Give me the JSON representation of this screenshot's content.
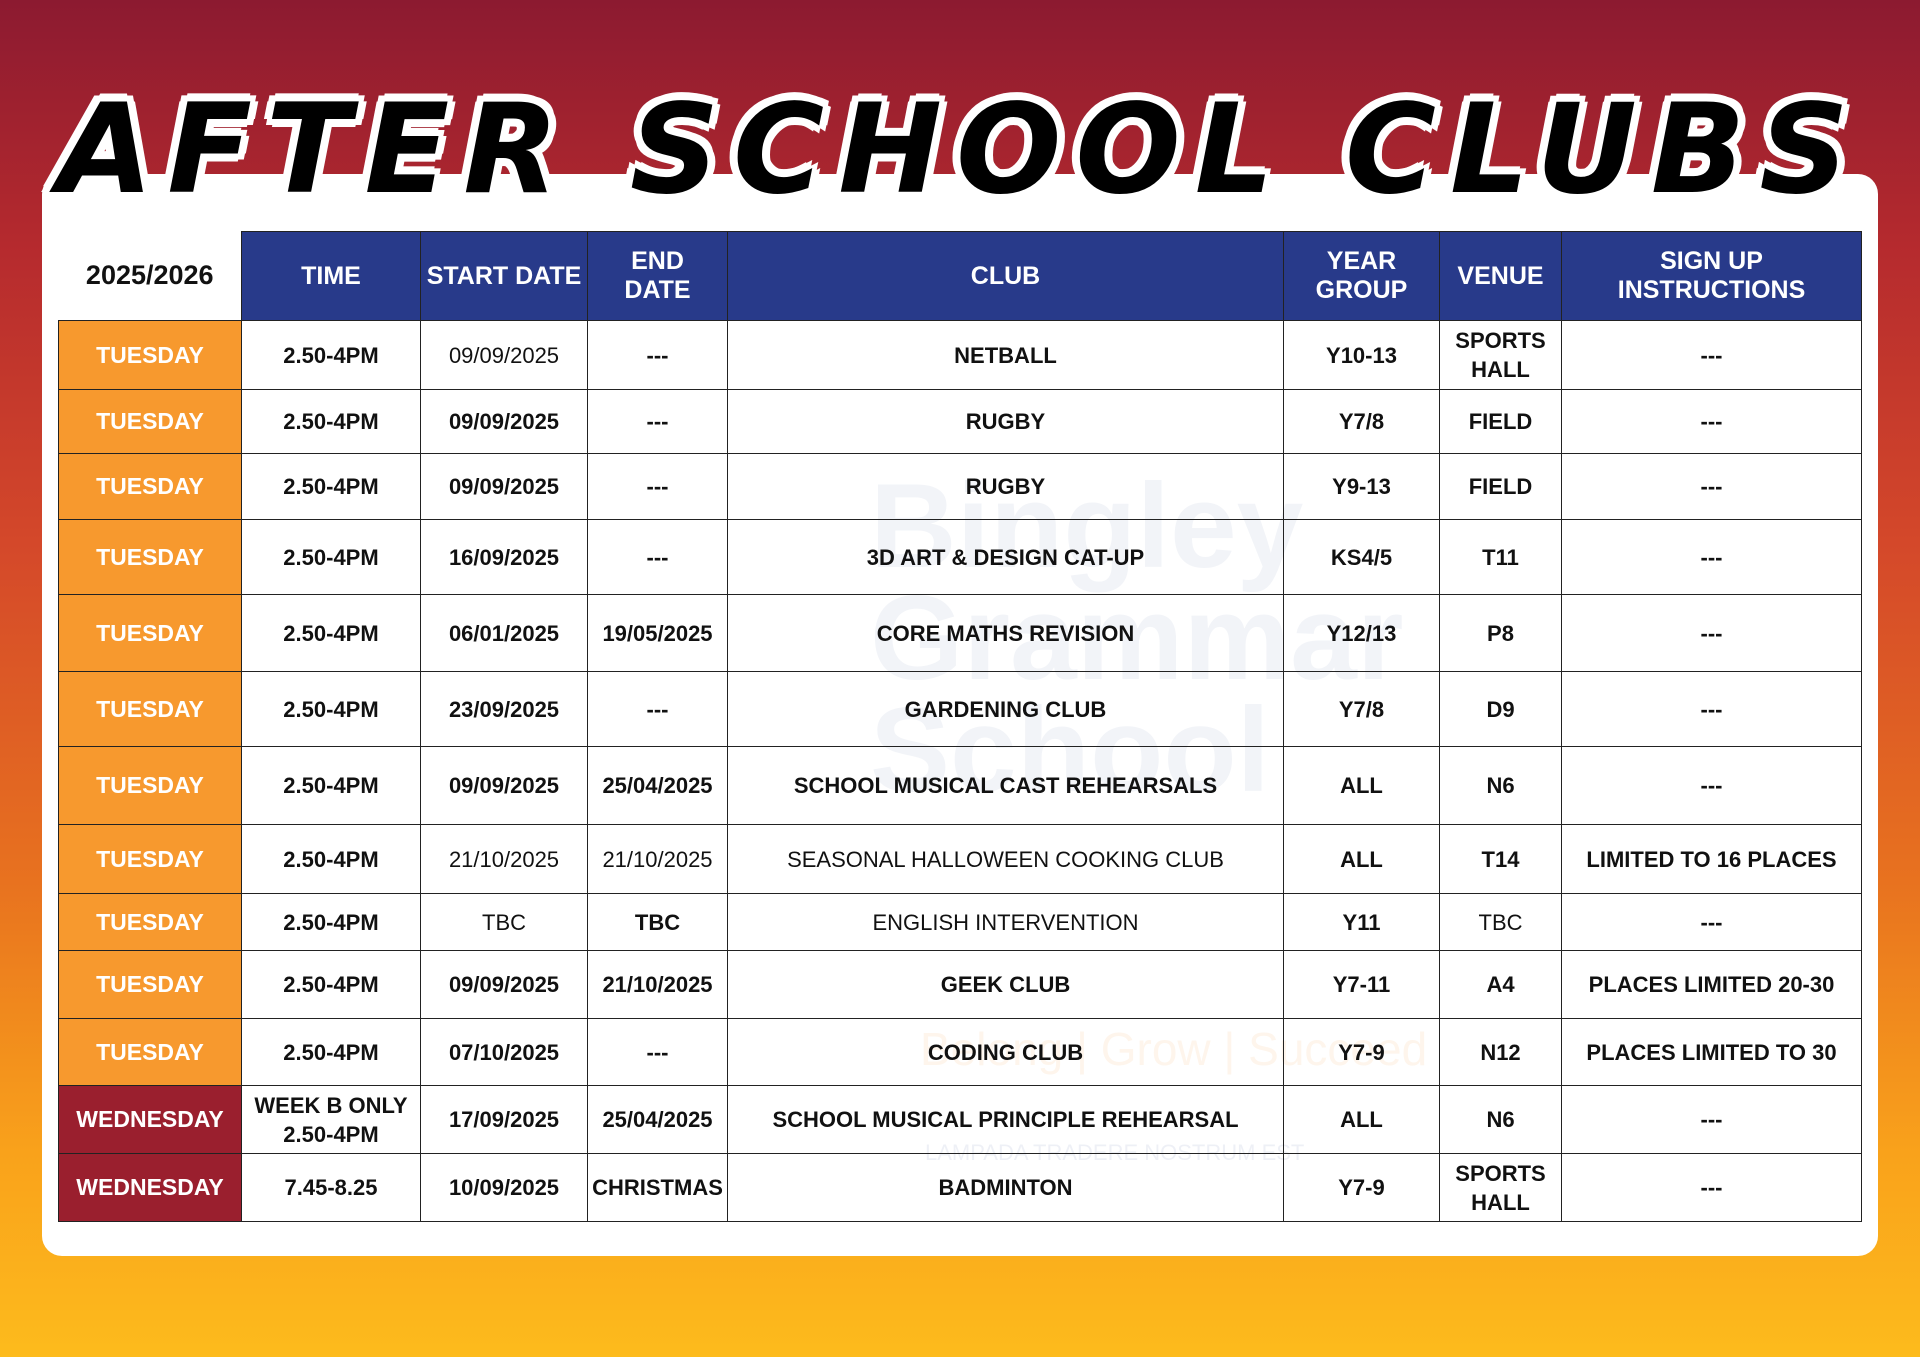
{
  "title": "AFTER SCHOOL CLUBS",
  "colors": {
    "header_bg": "#283a8a",
    "tuesday_bg": "#f7992e",
    "wednesday_bg": "#9a1f2e"
  },
  "watermark": {
    "name_lines": [
      "Bingley",
      "Grammar",
      "School"
    ],
    "tagline": "Belong | Grow | Succeed",
    "motto": "LAMPADA TRADERE NOSTRUM EST"
  },
  "table": {
    "year": "2025/2026",
    "headers": [
      "TIME",
      "START DATE",
      "END DATE",
      "CLUB",
      "YEAR GROUP",
      "VENUE",
      "SIGN UP INSTRUCTIONS"
    ],
    "rows": [
      {
        "day": "TUESDAY",
        "time": "2.50-4PM",
        "start": "09/09/2025",
        "end": "---",
        "club": "NETBALL",
        "year": "Y10-13",
        "venue": "SPORTS HALL",
        "signup": "---"
      },
      {
        "day": "TUESDAY",
        "time": "2.50-4PM",
        "start": "09/09/2025",
        "end": "---",
        "club": "RUGBY",
        "year": "Y7/8",
        "venue": "FIELD",
        "signup": "---"
      },
      {
        "day": "TUESDAY",
        "time": "2.50-4PM",
        "start": "09/09/2025",
        "end": "---",
        "club": "RUGBY",
        "year": "Y9-13",
        "venue": "FIELD",
        "signup": "---"
      },
      {
        "day": "TUESDAY",
        "time": "2.50-4PM",
        "start": "16/09/2025",
        "end": "---",
        "club": "3D ART & DESIGN CAT-UP",
        "year": "KS4/5",
        "venue": "T11",
        "signup": "---"
      },
      {
        "day": "TUESDAY",
        "time": "2.50-4PM",
        "start": "06/01/2025",
        "end": "19/05/2025",
        "club": "CORE MATHS REVISION",
        "year": "Y12/13",
        "venue": "P8",
        "signup": "---"
      },
      {
        "day": "TUESDAY",
        "time": "2.50-4PM",
        "start": "23/09/2025",
        "end": "---",
        "club": "GARDENING CLUB",
        "year": "Y7/8",
        "venue": "D9",
        "signup": "---"
      },
      {
        "day": "TUESDAY",
        "time": "2.50-4PM",
        "start": "09/09/2025",
        "end": "25/04/2025",
        "club": "SCHOOL MUSICAL CAST REHEARSALS",
        "year": "ALL",
        "venue": "N6",
        "signup": "---"
      },
      {
        "day": "TUESDAY",
        "time": "2.50-4PM",
        "start": "21/10/2025",
        "end": "21/10/2025",
        "club": "SEASONAL HALLOWEEN COOKING CLUB",
        "year": "ALL",
        "venue": "T14",
        "signup": "LIMITED TO 16 PLACES"
      },
      {
        "day": "TUESDAY",
        "time": "2.50-4PM",
        "start": "TBC",
        "end": "TBC",
        "club": "ENGLISH INTERVENTION",
        "year": "Y11",
        "venue": "TBC",
        "signup": "---"
      },
      {
        "day": "TUESDAY",
        "time": "2.50-4PM",
        "start": "09/09/2025",
        "end": "21/10/2025",
        "club": "GEEK CLUB",
        "year": "Y7-11",
        "venue": "A4",
        "signup": "PLACES LIMITED 20-30"
      },
      {
        "day": "TUESDAY",
        "time": "2.50-4PM",
        "start": "07/10/2025",
        "end": "---",
        "club": "CODING CLUB",
        "year": "Y7-9",
        "venue": "N12",
        "signup": "PLACES LIMITED TO 30"
      },
      {
        "day": "WEDNESDAY",
        "time": "WEEK B ONLY 2.50-4PM",
        "start": "17/09/2025",
        "end": "25/04/2025",
        "club": "SCHOOL MUSICAL PRINCIPLE REHEARSAL",
        "year": "ALL",
        "venue": "N6",
        "signup": "---"
      },
      {
        "day": "WEDNESDAY",
        "time": "7.45-8.25",
        "start": "10/09/2025",
        "end": "CHRISTMAS",
        "club": "BADMINTON",
        "year": "Y7-9",
        "venue": "SPORTS HALL",
        "signup": "---"
      }
    ]
  }
}
